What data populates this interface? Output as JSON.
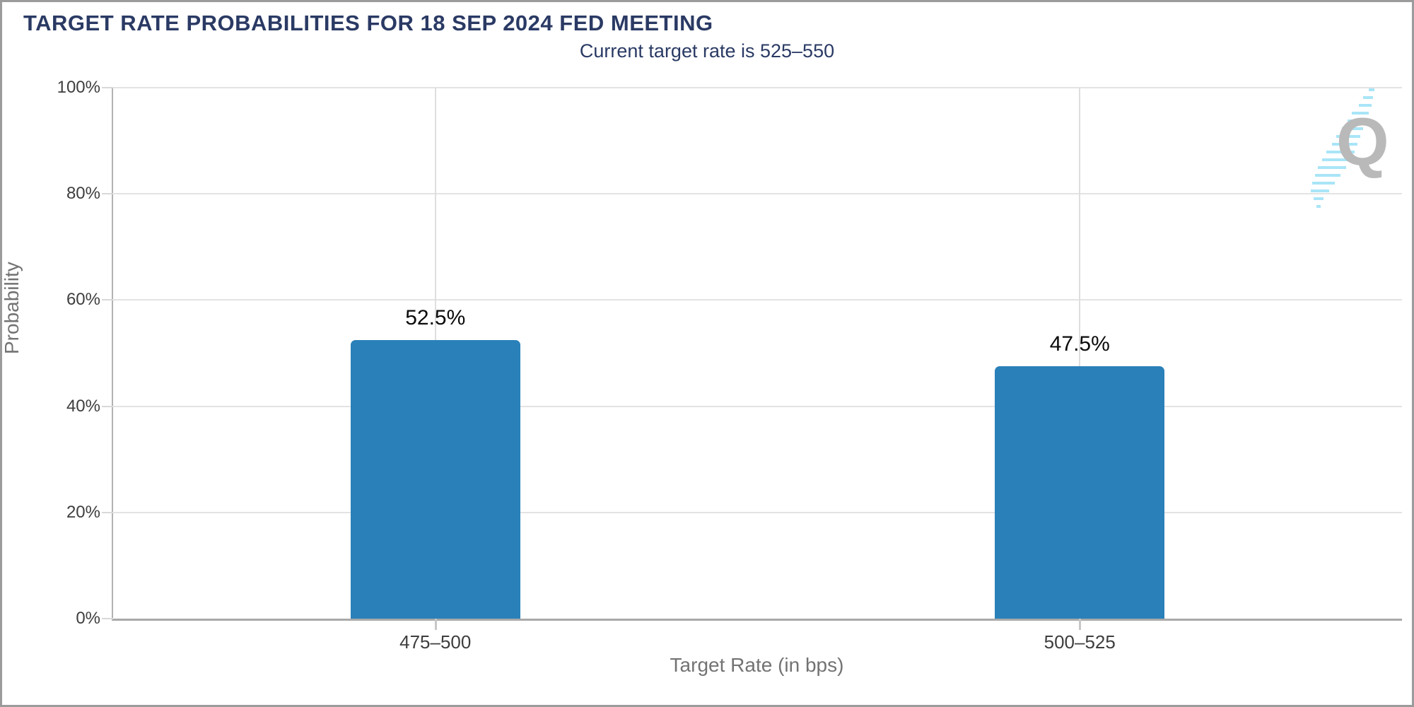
{
  "header": {
    "title": "TARGET RATE PROBABILITIES FOR 18 SEP 2024 FED MEETING"
  },
  "chart_data": {
    "type": "bar",
    "title": "TARGET RATE PROBABILITIES FOR 18 SEP 2024 FED MEETING",
    "subtitle": "Current target rate is 525–550",
    "categories": [
      "475–500",
      "500–525"
    ],
    "values": [
      52.5,
      47.5
    ],
    "value_labels": [
      "52.5%",
      "47.5%"
    ],
    "xlabel": "Target Rate (in bps)",
    "ylabel": "Probability",
    "ylim": [
      0,
      100
    ],
    "yticks": [
      {
        "value": 0,
        "label": "0%"
      },
      {
        "value": 20,
        "label": "20%"
      },
      {
        "value": 40,
        "label": "40%"
      },
      {
        "value": 60,
        "label": "60%"
      },
      {
        "value": 80,
        "label": "80%"
      },
      {
        "value": 100,
        "label": "100%"
      }
    ],
    "grid": true,
    "legend": "none",
    "bar_color": "#2a80b9"
  },
  "colors": {
    "title_navy": "#2a3a64",
    "bar_blue": "#2a80b9",
    "gridline": "#e3e3e3",
    "axis_line": "#a9a9a9",
    "tick_text": "#3e3e3e",
    "axis_title_text": "#737373",
    "watermark_gray": "#b9b9b9",
    "watermark_cyan": "#a9e5f7"
  },
  "watermark": {
    "letter": "Q",
    "name": "quikstrike-logo"
  }
}
